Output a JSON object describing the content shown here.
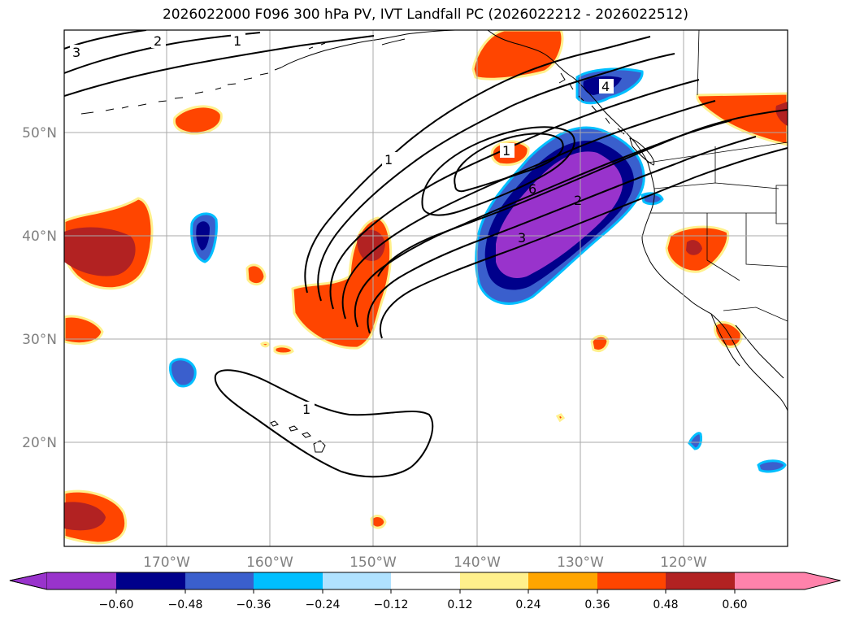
{
  "title": "2026022000 F096 300 hPa PV, IVT Landfall PC (2026022212 - 2026022512)",
  "lon_labels": [
    "170°W",
    "160°W",
    "150°W",
    "140°W",
    "130°W",
    "120°W"
  ],
  "lat_labels": [
    "50°N",
    "40°N",
    "30°N",
    "20°N"
  ],
  "contour_labels": [
    "3",
    "2",
    "1",
    "1",
    "1",
    "6",
    "2",
    "3",
    "4",
    "1"
  ],
  "colorbar": {
    "ticks": [
      "−0.60",
      "−0.48",
      "−0.36",
      "−0.24",
      "−0.12",
      "0.12",
      "0.24",
      "0.36",
      "0.48",
      "0.60"
    ],
    "colors": [
      "#9933cc",
      "#00008b",
      "#3a5fcd",
      "#00bfff",
      "#b0e2ff",
      "#ffffff",
      "#fff08c",
      "#ffa500",
      "#ff4500",
      "#b22222",
      "#ff82ab"
    ]
  },
  "fill_colors": {
    "pos_light": "#fff08c",
    "pos_mid": "#ffa500",
    "pos_strong": "#ff4500",
    "pos_max": "#b22222",
    "neg_light": "#b0e2ff",
    "neg_mid": "#00bfff",
    "neg_strong": "#3a5fcd",
    "neg_deep": "#00008b",
    "neg_max": "#9933cc"
  }
}
